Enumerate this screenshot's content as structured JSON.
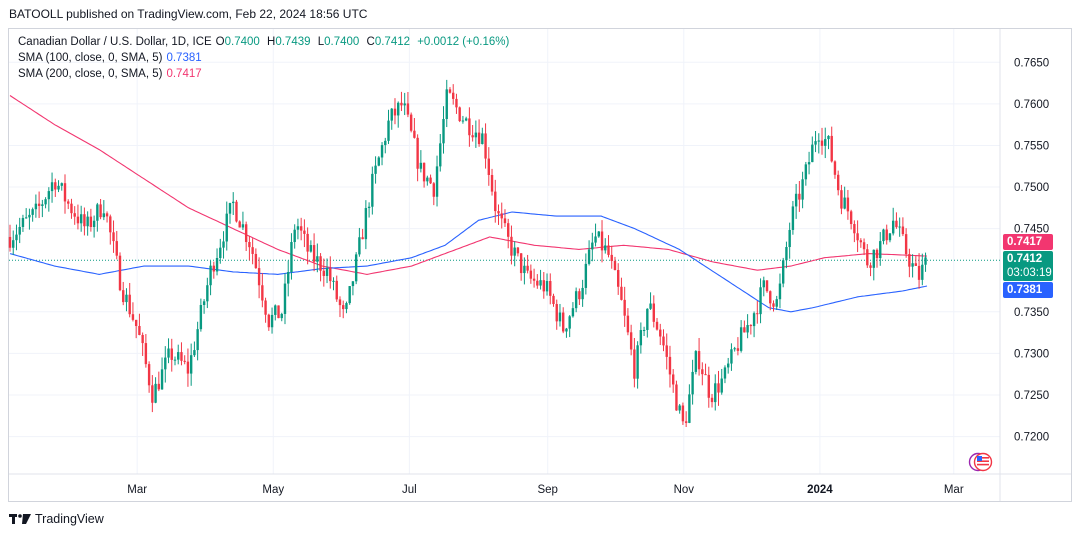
{
  "header": {
    "publisher_text": "BATOOLL published on TradingView.com, Feb 22, 2024 18:56 UTC"
  },
  "legend": {
    "symbol_title": "Canadian Dollar / U.S. Dollar, 1D, ICE",
    "ohlc": {
      "o_label": "O",
      "o_value": "0.7400",
      "h_label": "H",
      "h_value": "0.7439",
      "l_label": "L",
      "l_value": "0.7400",
      "c_label": "C",
      "c_value": "0.7412",
      "change": "+0.0012 (+0.16%)"
    },
    "sma100_label": "SMA (100, close, 0, SMA, 5)",
    "sma100_value": "0.7381",
    "sma200_label": "SMA (200, close, 0, SMA, 5)",
    "sma200_value": "0.7417"
  },
  "price_tags": {
    "last_price": "0.7412",
    "countdown": "03:03:19",
    "sma200": "0.7417",
    "sma100": "0.7381"
  },
  "footer": {
    "brand": "TradingView"
  },
  "colors": {
    "up": "#089981",
    "down": "#f23645",
    "sma100": "#2962ff",
    "sma200": "#f23670",
    "grid": "#f0f3fa"
  },
  "chart_data": {
    "type": "candlestick",
    "title": "Canadian Dollar / U.S. Dollar, 1D, ICE",
    "ylim": [
      0.7155,
      0.769
    ],
    "y_ticks": [
      "0.7650",
      "0.7600",
      "0.7550",
      "0.7500",
      "0.7450",
      "0.7350",
      "0.7300",
      "0.7250",
      "0.7200"
    ],
    "x_ticks": [
      {
        "label": "Mar",
        "day": 57
      },
      {
        "label": "May",
        "day": 118
      },
      {
        "label": "Jul",
        "day": 179
      },
      {
        "label": "Sep",
        "day": 241
      },
      {
        "label": "Nov",
        "day": 302
      },
      {
        "label": "2024",
        "day": 363
      },
      {
        "label": "Mar",
        "day": 423
      }
    ],
    "x_range_days": [
      0,
      437
    ],
    "close_path": [
      {
        "day": 0,
        "close": 0.744
      },
      {
        "day": 12,
        "close": 0.747
      },
      {
        "day": 20,
        "close": 0.751
      },
      {
        "day": 26,
        "close": 0.748
      },
      {
        "day": 34,
        "close": 0.745
      },
      {
        "day": 42,
        "close": 0.748
      },
      {
        "day": 50,
        "close": 0.738
      },
      {
        "day": 57,
        "close": 0.733
      },
      {
        "day": 64,
        "close": 0.725
      },
      {
        "day": 72,
        "close": 0.73
      },
      {
        "day": 80,
        "close": 0.728
      },
      {
        "day": 90,
        "close": 0.74
      },
      {
        "day": 100,
        "close": 0.748
      },
      {
        "day": 108,
        "close": 0.743
      },
      {
        "day": 116,
        "close": 0.734
      },
      {
        "day": 122,
        "close": 0.735
      },
      {
        "day": 128,
        "close": 0.746
      },
      {
        "day": 134,
        "close": 0.742
      },
      {
        "day": 142,
        "close": 0.74
      },
      {
        "day": 150,
        "close": 0.734
      },
      {
        "day": 156,
        "close": 0.742
      },
      {
        "day": 162,
        "close": 0.75
      },
      {
        "day": 170,
        "close": 0.758
      },
      {
        "day": 176,
        "close": 0.76
      },
      {
        "day": 184,
        "close": 0.752
      },
      {
        "day": 190,
        "close": 0.75
      },
      {
        "day": 196,
        "close": 0.761
      },
      {
        "day": 204,
        "close": 0.758
      },
      {
        "day": 212,
        "close": 0.756
      },
      {
        "day": 218,
        "close": 0.747
      },
      {
        "day": 224,
        "close": 0.743
      },
      {
        "day": 232,
        "close": 0.739
      },
      {
        "day": 240,
        "close": 0.738
      },
      {
        "day": 248,
        "close": 0.733
      },
      {
        "day": 256,
        "close": 0.738
      },
      {
        "day": 262,
        "close": 0.744
      },
      {
        "day": 268,
        "close": 0.742
      },
      {
        "day": 274,
        "close": 0.736
      },
      {
        "day": 280,
        "close": 0.728
      },
      {
        "day": 286,
        "close": 0.736
      },
      {
        "day": 292,
        "close": 0.732
      },
      {
        "day": 298,
        "close": 0.725
      },
      {
        "day": 302,
        "close": 0.721
      },
      {
        "day": 308,
        "close": 0.73
      },
      {
        "day": 314,
        "close": 0.725
      },
      {
        "day": 320,
        "close": 0.727
      },
      {
        "day": 326,
        "close": 0.731
      },
      {
        "day": 332,
        "close": 0.734
      },
      {
        "day": 338,
        "close": 0.738
      },
      {
        "day": 344,
        "close": 0.736
      },
      {
        "day": 350,
        "close": 0.746
      },
      {
        "day": 356,
        "close": 0.751
      },
      {
        "day": 362,
        "close": 0.757
      },
      {
        "day": 367,
        "close": 0.755
      },
      {
        "day": 372,
        "close": 0.749
      },
      {
        "day": 378,
        "close": 0.746
      },
      {
        "day": 384,
        "close": 0.741
      },
      {
        "day": 390,
        "close": 0.743
      },
      {
        "day": 396,
        "close": 0.746
      },
      {
        "day": 402,
        "close": 0.742
      },
      {
        "day": 407,
        "close": 0.739
      },
      {
        "day": 411,
        "close": 0.7412
      }
    ],
    "sma100_path": [
      {
        "day": 0,
        "value": 0.742
      },
      {
        "day": 20,
        "value": 0.7405
      },
      {
        "day": 40,
        "value": 0.7395
      },
      {
        "day": 60,
        "value": 0.7405
      },
      {
        "day": 80,
        "value": 0.7405
      },
      {
        "day": 100,
        "value": 0.7398
      },
      {
        "day": 120,
        "value": 0.7395
      },
      {
        "day": 140,
        "value": 0.7402
      },
      {
        "day": 160,
        "value": 0.7405
      },
      {
        "day": 180,
        "value": 0.7415
      },
      {
        "day": 195,
        "value": 0.743
      },
      {
        "day": 210,
        "value": 0.746
      },
      {
        "day": 225,
        "value": 0.747
      },
      {
        "day": 245,
        "value": 0.7465
      },
      {
        "day": 265,
        "value": 0.7465
      },
      {
        "day": 280,
        "value": 0.745
      },
      {
        "day": 300,
        "value": 0.7425
      },
      {
        "day": 320,
        "value": 0.739
      },
      {
        "day": 340,
        "value": 0.7355
      },
      {
        "day": 350,
        "value": 0.735
      },
      {
        "day": 360,
        "value": 0.7355
      },
      {
        "day": 380,
        "value": 0.7368
      },
      {
        "day": 400,
        "value": 0.7375
      },
      {
        "day": 411,
        "value": 0.7381
      }
    ],
    "sma200_path": [
      {
        "day": 0,
        "value": 0.761
      },
      {
        "day": 20,
        "value": 0.7575
      },
      {
        "day": 40,
        "value": 0.7545
      },
      {
        "day": 60,
        "value": 0.751
      },
      {
        "day": 80,
        "value": 0.7475
      },
      {
        "day": 100,
        "value": 0.745
      },
      {
        "day": 120,
        "value": 0.7425
      },
      {
        "day": 140,
        "value": 0.7405
      },
      {
        "day": 160,
        "value": 0.7395
      },
      {
        "day": 180,
        "value": 0.7405
      },
      {
        "day": 200,
        "value": 0.7425
      },
      {
        "day": 215,
        "value": 0.744
      },
      {
        "day": 235,
        "value": 0.743
      },
      {
        "day": 255,
        "value": 0.7425
      },
      {
        "day": 275,
        "value": 0.743
      },
      {
        "day": 295,
        "value": 0.7425
      },
      {
        "day": 315,
        "value": 0.741
      },
      {
        "day": 335,
        "value": 0.74
      },
      {
        "day": 350,
        "value": 0.7405
      },
      {
        "day": 365,
        "value": 0.7415
      },
      {
        "day": 385,
        "value": 0.742
      },
      {
        "day": 411,
        "value": 0.7417
      }
    ]
  }
}
